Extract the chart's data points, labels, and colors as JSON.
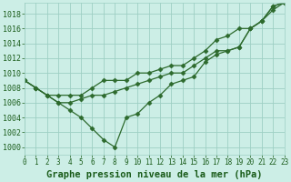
{
  "title": "Graphe pression niveau de la mer (hPa)",
  "x_labels": [
    "0",
    "1",
    "2",
    "3",
    "4",
    "5",
    "6",
    "7",
    "8",
    "9",
    "10",
    "11",
    "12",
    "13",
    "14",
    "15",
    "16",
    "17",
    "18",
    "19",
    "20",
    "21",
    "22",
    "23"
  ],
  "xlim": [
    0,
    23
  ],
  "ylim": [
    999,
    1019.5
  ],
  "yticks": [
    1000,
    1002,
    1004,
    1006,
    1008,
    1010,
    1012,
    1014,
    1016,
    1018
  ],
  "series": [
    [
      1009,
      1008,
      1007,
      1007,
      1007,
      1007,
      1008,
      1009,
      1009,
      1009,
      1010,
      1010,
      1010.5,
      1011,
      1011,
      1012,
      1013,
      1014.5,
      1015,
      1016,
      1016,
      1017,
      1019,
      1019.5
    ],
    [
      1009,
      1008,
      1007,
      1006,
      1006,
      1006.5,
      1007,
      1007,
      1007.5,
      1008,
      1008.5,
      1009,
      1009.5,
      1010,
      1010,
      1011,
      1012,
      1013,
      1013,
      1013.5,
      1016,
      1017,
      1018.5,
      1019.5
    ],
    [
      1009,
      1008,
      1007,
      1006,
      1005,
      1004,
      1002.5,
      1001,
      1000,
      1004,
      1004.5,
      1006,
      1007,
      1008.5,
      1009,
      1009.5,
      1011.5,
      1012.5,
      1013,
      1013.5,
      1016,
      1017,
      1019,
      1019.5
    ]
  ],
  "line_color": "#2d6a2d",
  "marker": "D",
  "marker_size": 2.5,
  "bg_color": "#cceee6",
  "grid_color": "#9ecfc4",
  "label_color": "#1a5c1a",
  "title_color": "#1a5c1a",
  "xlabel_fontsize": 5.5,
  "ylabel_fontsize": 6,
  "title_fontsize": 7.5
}
